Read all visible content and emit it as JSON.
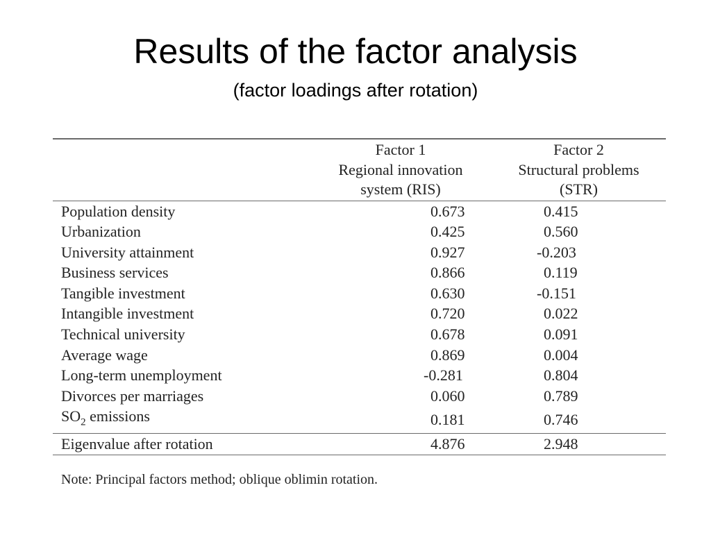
{
  "slide": {
    "title": "Results of the factor analysis",
    "subtitle": "(factor loadings after rotation)"
  },
  "table": {
    "headers": {
      "factor1": [
        "Factor 1",
        "Regional innovation",
        "system (RIS)"
      ],
      "factor2": [
        "Factor 2",
        "Structural problems",
        "(STR)"
      ]
    },
    "rows": [
      {
        "label": "Population density",
        "f1": "0.673",
        "f2": "0.415"
      },
      {
        "label": "Urbanization",
        "f1": "0.425",
        "f2": "0.560"
      },
      {
        "label": "University attainment",
        "f1": "0.927",
        "f2": "-0.203"
      },
      {
        "label": "Business services",
        "f1": "0.866",
        "f2": "0.119"
      },
      {
        "label": "Tangible investment",
        "f1": "0.630",
        "f2": "-0.151"
      },
      {
        "label": "Intangible investment",
        "f1": "0.720",
        "f2": "0.022"
      },
      {
        "label": "Technical university",
        "f1": "0.678",
        "f2": "0.091"
      },
      {
        "label": "Average wage",
        "f1": "0.869",
        "f2": "0.004"
      },
      {
        "label": "Long-term unemployment",
        "f1": "-0.281",
        "f2": "0.804"
      },
      {
        "label": "Divorces per marriages",
        "f1": "0.060",
        "f2": "0.789"
      },
      {
        "label_main": "SO",
        "label_sub": "2",
        "label_rest": " emissions",
        "f1": "0.181",
        "f2": "0.746"
      }
    ],
    "footer": {
      "label": "Eigenvalue after rotation",
      "f1": "4.876",
      "f2": "2.948"
    }
  },
  "note": "Note: Principal factors method; oblique oblimin rotation."
}
